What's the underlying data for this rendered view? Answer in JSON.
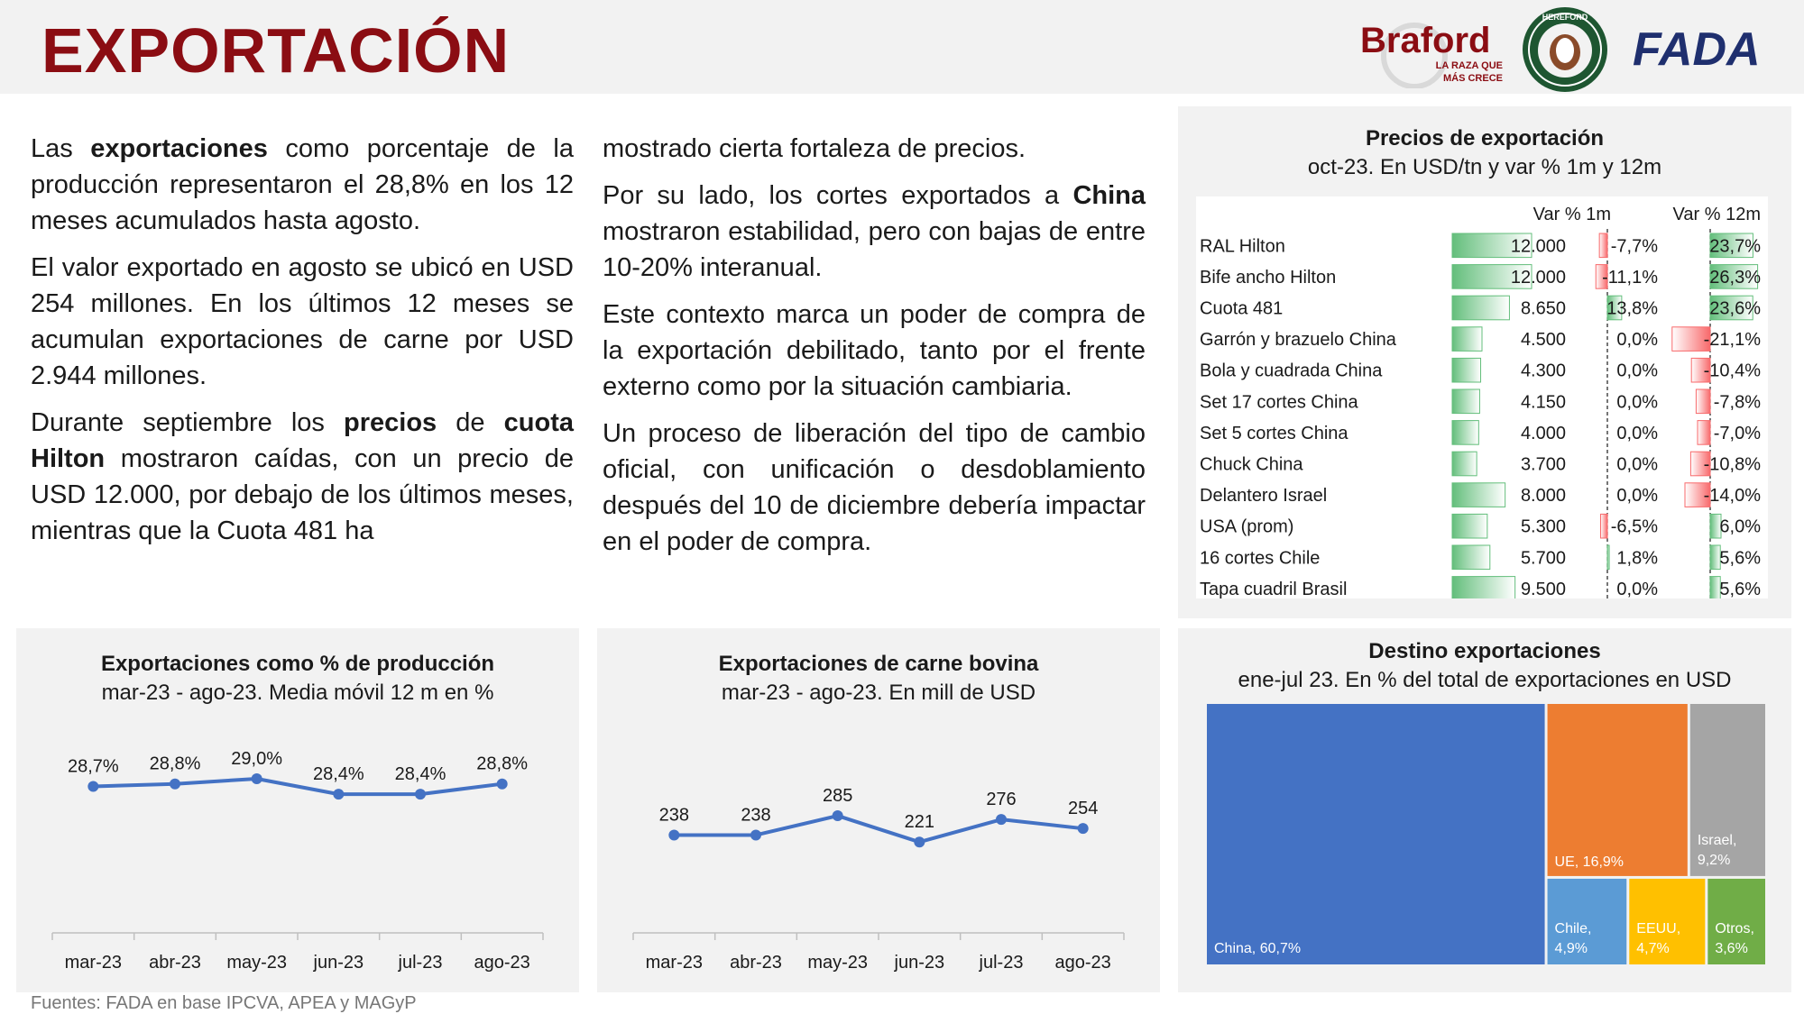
{
  "header": {
    "title": "EXPORTACIÓN",
    "logos": {
      "braford_name": "Braford",
      "braford_tagline_1": "LA RAZA QUE",
      "braford_tagline_2": "MÁS CRECE",
      "hereford_name": "HEREFORD",
      "fada_name": "FADA"
    }
  },
  "text": {
    "col1": [
      [
        {
          "t": "Las "
        },
        {
          "t": "exportaciones",
          "b": true
        },
        {
          "t": " como porcentaje de la producción representaron el 28,8% en los 12 meses acumulados hasta agosto."
        }
      ],
      [
        {
          "t": "El valor exportado en agosto se ubicó en USD 254 millones. En los últimos 12 meses se acumulan exportaciones de carne por USD 2.944 millones."
        }
      ],
      [
        {
          "t": "Durante septiembre los "
        },
        {
          "t": "precios",
          "b": true
        },
        {
          "t": " de "
        },
        {
          "t": "cuota Hilton",
          "b": true
        },
        {
          "t": " mostraron caídas, con un precio de USD 12.000, por debajo de los últimos meses, mientras que la Cuota 481 ha"
        }
      ]
    ],
    "col2": [
      [
        {
          "t": "mostrado cierta fortaleza de precios."
        }
      ],
      [
        {
          "t": "Por su lado, los cortes exportados a "
        },
        {
          "t": "China",
          "b": true
        },
        {
          "t": " mostraron estabilidad, pero con bajas de entre 10-20% interanual."
        }
      ],
      [
        {
          "t": "Este contexto marca un poder de compra de la exportación debilitado, tanto por el frente externo como por la situación cambiaria."
        }
      ],
      [
        {
          "t": "Un proceso de liberación del tipo de cambio oficial, con unificación o desdoblamiento después del 10 de diciembre debería impactar en el poder de compra."
        }
      ]
    ]
  },
  "footer": "Fuentes: FADA en base IPCVA, APEA y MAGyP",
  "colors": {
    "title_red": "#8b0d13",
    "line_blue": "#4472c4",
    "bar_green": "#63be7b",
    "bar_red": "#f8696b",
    "panel_bg": "#f2f2f2",
    "china": "#4472c4",
    "ue": "#ed7d31",
    "israel": "#a5a5a5",
    "chile": "#5b9bd5",
    "eeuu": "#ffc000",
    "otros": "#70ad47"
  },
  "chart_data": [
    {
      "id": "pct",
      "type": "line",
      "title": "Exportaciones como % de producción",
      "subtitle": "mar-23 - ago-23. Media móvil 12 m en %",
      "categories": [
        "mar-23",
        "abr-23",
        "may-23",
        "jun-23",
        "jul-23",
        "ago-23"
      ],
      "values": [
        28.7,
        28.8,
        29.0,
        28.4,
        28.4,
        28.8
      ],
      "labels": [
        "28,7%",
        "28,8%",
        "29,0%",
        "28,4%",
        "28,4%",
        "28,8%"
      ],
      "ylim": [
        23,
        31
      ],
      "grid": false
    },
    {
      "id": "usd",
      "type": "line",
      "title": "Exportaciones de carne bovina",
      "subtitle": "mar-23 - ago-23. En mill de USD",
      "categories": [
        "mar-23",
        "abr-23",
        "may-23",
        "jun-23",
        "jul-23",
        "ago-23"
      ],
      "values": [
        238,
        238,
        285,
        221,
        276,
        254
      ],
      "labels": [
        "238",
        "238",
        "285",
        "221",
        "276",
        "254"
      ],
      "ylim": [
        0,
        500
      ],
      "grid": false
    },
    {
      "id": "precios",
      "type": "table",
      "title": "Precios de exportación",
      "subtitle": "oct-23. En USD/tn y var % 1m y 12m",
      "columns": [
        "",
        "",
        "Var % 1m",
        "Var % 12m"
      ],
      "rows": [
        {
          "name": "RAL Hilton",
          "price": 12000,
          "price_label": "12.000",
          "m1": -7.7,
          "m1_label": "-7,7%",
          "m12": 23.7,
          "m12_label": "23,7%"
        },
        {
          "name": "Bife ancho Hilton",
          "price": 12000,
          "price_label": "12.000",
          "m1": -11.1,
          "m1_label": "-11,1%",
          "m12": 26.3,
          "m12_label": "26,3%"
        },
        {
          "name": "Cuota 481",
          "price": 8650,
          "price_label": "8.650",
          "m1": 13.8,
          "m1_label": "13,8%",
          "m12": 23.6,
          "m12_label": "23,6%"
        },
        {
          "name": "Garrón y brazuelo China",
          "price": 4500,
          "price_label": "4.500",
          "m1": 0.0,
          "m1_label": "0,0%",
          "m12": -21.1,
          "m12_label": "-21,1%"
        },
        {
          "name": "Bola y cuadrada China",
          "price": 4300,
          "price_label": "4.300",
          "m1": 0.0,
          "m1_label": "0,0%",
          "m12": -10.4,
          "m12_label": "-10,4%"
        },
        {
          "name": "Set 17 cortes China",
          "price": 4150,
          "price_label": "4.150",
          "m1": 0.0,
          "m1_label": "0,0%",
          "m12": -7.8,
          "m12_label": "-7,8%"
        },
        {
          "name": "Set 5 cortes China",
          "price": 4000,
          "price_label": "4.000",
          "m1": 0.0,
          "m1_label": "0,0%",
          "m12": -7.0,
          "m12_label": "-7,0%"
        },
        {
          "name": "Chuck China",
          "price": 3700,
          "price_label": "3.700",
          "m1": 0.0,
          "m1_label": "0,0%",
          "m12": -10.8,
          "m12_label": "-10,8%"
        },
        {
          "name": "Delantero Israel",
          "price": 8000,
          "price_label": "8.000",
          "m1": 0.0,
          "m1_label": "0,0%",
          "m12": -14.0,
          "m12_label": "-14,0%"
        },
        {
          "name": "USA (prom)",
          "price": 5300,
          "price_label": "5.300",
          "m1": -6.5,
          "m1_label": "-6,5%",
          "m12": 6.0,
          "m12_label": "6,0%"
        },
        {
          "name": "16 cortes Chile",
          "price": 5700,
          "price_label": "5.700",
          "m1": 1.8,
          "m1_label": "1,8%",
          "m12": 5.6,
          "m12_label": "5,6%"
        },
        {
          "name": "Tapa cuadril Brasil",
          "price": 9500,
          "price_label": "9.500",
          "m1": 0.0,
          "m1_label": "0,0%",
          "m12": 5.6,
          "m12_label": "5,6%"
        }
      ]
    },
    {
      "id": "destino",
      "type": "treemap",
      "title": "Destino exportaciones",
      "subtitle": "ene-jul 23. En % del total de exportaciones en USD",
      "items": [
        {
          "name": "China",
          "value": 60.7,
          "label": "China, 60,7%"
        },
        {
          "name": "UE",
          "value": 16.9,
          "label": "UE, 16,9%"
        },
        {
          "name": "Israel",
          "value": 9.2,
          "label_line1": "Israel,",
          "label_line2": "9,2%"
        },
        {
          "name": "Chile",
          "value": 4.9,
          "label_line1": "Chile,",
          "label_line2": "4,9%"
        },
        {
          "name": "EEUU",
          "value": 4.7,
          "label_line1": "EEUU,",
          "label_line2": "4,7%"
        },
        {
          "name": "Otros",
          "value": 3.6,
          "label_line1": "Otros,",
          "label_line2": "3,6%"
        }
      ]
    }
  ]
}
